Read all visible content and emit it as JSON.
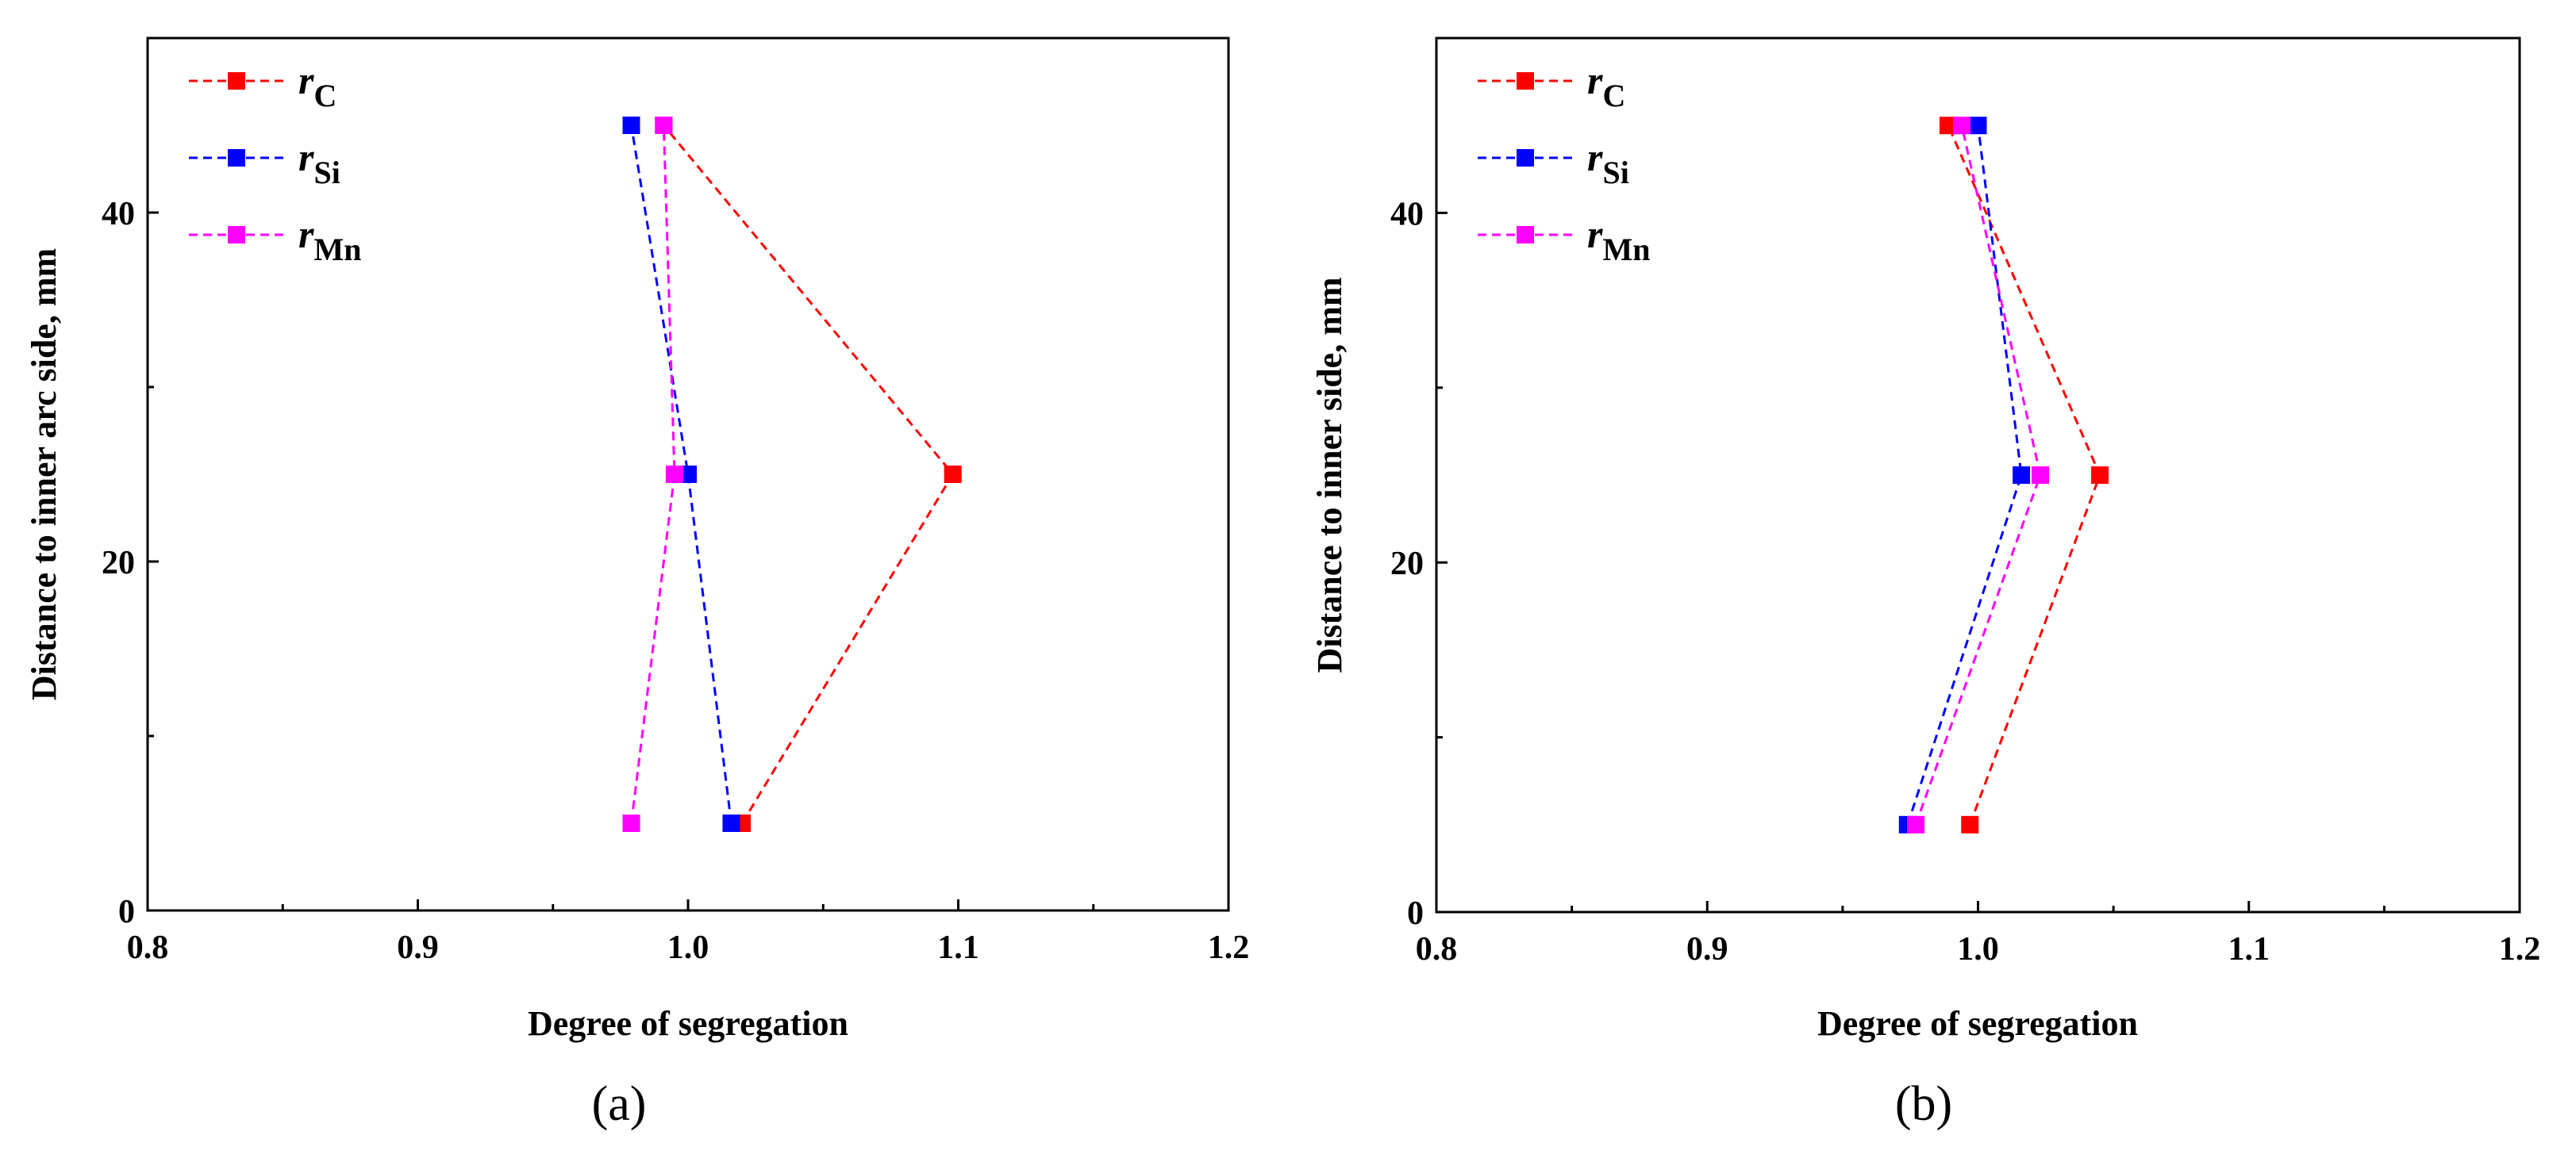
{
  "chart_data": [
    {
      "type": "line",
      "caption": "(a)",
      "xlabel": "Degree of segregation",
      "ylabel": "Distance to inner arc side, mm",
      "xlim": [
        0.8,
        1.2
      ],
      "ylim": [
        0,
        50
      ],
      "xticks": [
        0.8,
        0.9,
        1.0,
        1.1,
        1.2
      ],
      "xtick_labels": [
        "0.8",
        "0.9",
        "1.0",
        "1.1",
        "1.2"
      ],
      "yticks": [
        0,
        20,
        40
      ],
      "ytick_labels": [
        "0",
        "20",
        "40"
      ],
      "legend_position": "top-left",
      "grid": false,
      "series": [
        {
          "name": "rC",
          "symbol": "r",
          "subscript": "C",
          "color": "#ff0000",
          "x": [
            1.02,
            1.098,
            0.991
          ],
          "y": [
            5,
            25,
            45
          ]
        },
        {
          "name": "rSi",
          "symbol": "r",
          "subscript": "Si",
          "color": "#0000ff",
          "x": [
            1.016,
            1.0,
            0.979
          ],
          "y": [
            5,
            25,
            45
          ]
        },
        {
          "name": "rMn",
          "symbol": "r",
          "subscript": "Mn",
          "color": "#ff00ff",
          "x": [
            0.979,
            0.995,
            0.991
          ],
          "y": [
            5,
            25,
            45
          ]
        }
      ]
    },
    {
      "type": "line",
      "caption": "(b)",
      "xlabel": "Degree of segregation",
      "ylabel": "Distance to inner side, mm",
      "xlim": [
        0.8,
        1.2
      ],
      "ylim": [
        0,
        50
      ],
      "xticks": [
        0.8,
        0.9,
        1.0,
        1.1,
        1.2
      ],
      "xtick_labels": [
        "0.8",
        "0.9",
        "1.0",
        "1.1",
        "1.2"
      ],
      "yticks": [
        0,
        20,
        40
      ],
      "ytick_labels": [
        "0",
        "20",
        "40"
      ],
      "legend_position": "top-left",
      "grid": false,
      "series": [
        {
          "name": "rC",
          "symbol": "r",
          "subscript": "C",
          "color": "#ff0000",
          "x": [
            0.997,
            1.045,
            0.989
          ],
          "y": [
            5,
            25,
            45
          ]
        },
        {
          "name": "rSi",
          "symbol": "r",
          "subscript": "Si",
          "color": "#0000ff",
          "x": [
            0.974,
            1.016,
            1.0
          ],
          "y": [
            5,
            25,
            45
          ]
        },
        {
          "name": "rMn",
          "symbol": "r",
          "subscript": "Mn",
          "color": "#ff00ff",
          "x": [
            0.977,
            1.023,
            0.994
          ],
          "y": [
            5,
            25,
            45
          ]
        }
      ]
    }
  ]
}
